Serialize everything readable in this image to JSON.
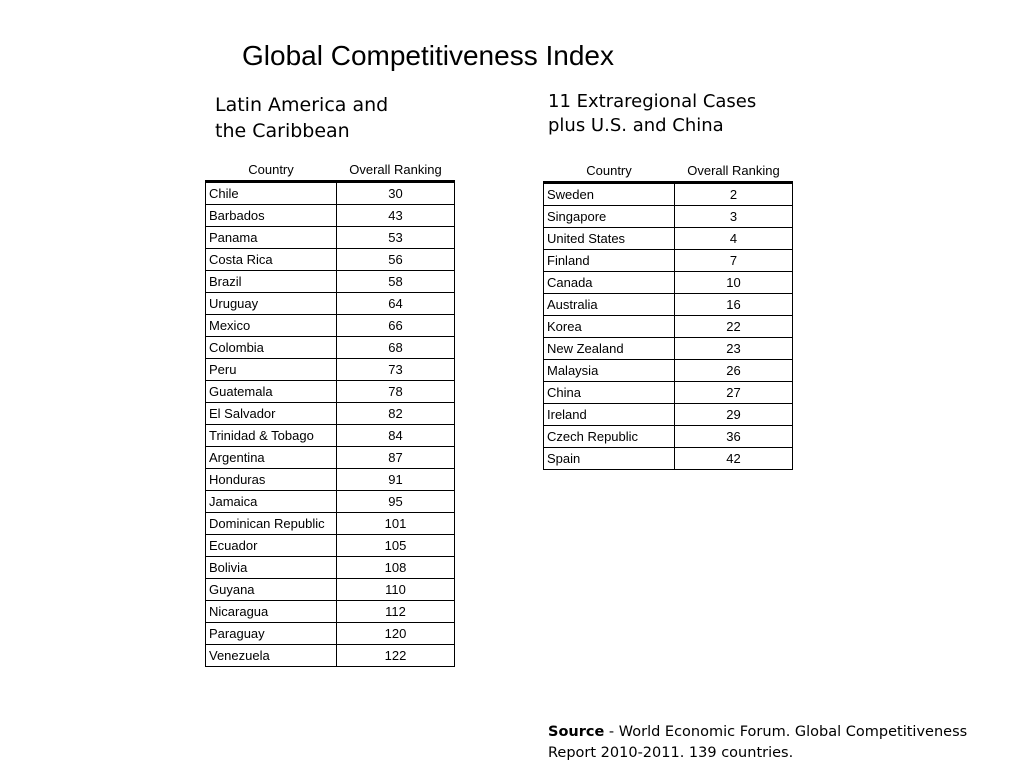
{
  "title": "Global Competitiveness Index",
  "left": {
    "heading_line1": "Latin America and",
    "heading_line2": "the Caribbean",
    "col_country": "Country",
    "col_rank": "Overall Ranking",
    "rows": [
      {
        "country": "Chile",
        "rank": "30"
      },
      {
        "country": "Barbados",
        "rank": "43"
      },
      {
        "country": "Panama",
        "rank": "53"
      },
      {
        "country": "Costa Rica",
        "rank": "56"
      },
      {
        "country": "Brazil",
        "rank": "58"
      },
      {
        "country": "Uruguay",
        "rank": "64"
      },
      {
        "country": "Mexico",
        "rank": "66"
      },
      {
        "country": "Colombia",
        "rank": "68"
      },
      {
        "country": "Peru",
        "rank": "73"
      },
      {
        "country": "Guatemala",
        "rank": "78"
      },
      {
        "country": "El Salvador",
        "rank": "82"
      },
      {
        "country": "Trinidad & Tobago",
        "rank": "84"
      },
      {
        "country": "Argentina",
        "rank": "87"
      },
      {
        "country": "Honduras",
        "rank": "91"
      },
      {
        "country": "Jamaica",
        "rank": "95"
      },
      {
        "country": "Dominican Republic",
        "rank": "101"
      },
      {
        "country": "Ecuador",
        "rank": "105"
      },
      {
        "country": "Bolivia",
        "rank": "108"
      },
      {
        "country": "Guyana",
        "rank": "110"
      },
      {
        "country": "Nicaragua",
        "rank": "112"
      },
      {
        "country": "Paraguay",
        "rank": "120"
      },
      {
        "country": "Venezuela",
        "rank": "122"
      }
    ]
  },
  "right": {
    "heading_line1": "11  Extraregional Cases",
    "heading_line2": "plus U.S. and China",
    "col_country": "Country",
    "col_rank": "Overall Ranking",
    "rows": [
      {
        "country": "Sweden",
        "rank": "2"
      },
      {
        "country": "Singapore",
        "rank": "3"
      },
      {
        "country": "United States",
        "rank": "4"
      },
      {
        "country": "Finland",
        "rank": "7"
      },
      {
        "country": "Canada",
        "rank": "10"
      },
      {
        "country": "Australia",
        "rank": "16"
      },
      {
        "country": "Korea",
        "rank": "22"
      },
      {
        "country": "New Zealand",
        "rank": "23"
      },
      {
        "country": "Malaysia",
        "rank": "26"
      },
      {
        "country": "China",
        "rank": "27"
      },
      {
        "country": "Ireland",
        "rank": "29"
      },
      {
        "country": "Czech Republic",
        "rank": "36"
      },
      {
        "country": "Spain",
        "rank": "42"
      }
    ]
  },
  "source": {
    "label": "Source",
    "text_line1": " - World Economic Forum. Global Competitiveness",
    "text_line2": "Report 2010-2011. 139 countries."
  }
}
